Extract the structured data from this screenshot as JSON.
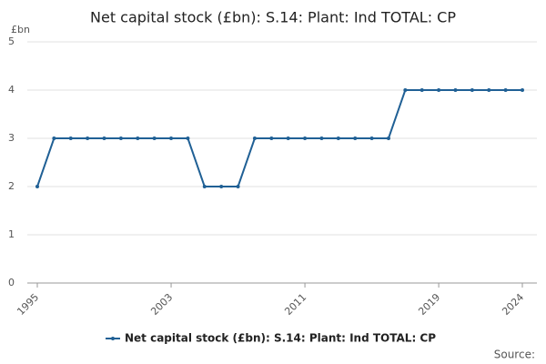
{
  "chart_data": {
    "type": "line",
    "title": "Net capital stock (£bn): S.14: Plant: Ind TOTAL: CP",
    "y_label": "£bn",
    "x": [
      1995,
      1996,
      1997,
      1998,
      1999,
      2000,
      2001,
      2002,
      2003,
      2004,
      2005,
      2006,
      2007,
      2008,
      2009,
      2010,
      2011,
      2012,
      2013,
      2014,
      2015,
      2016,
      2017,
      2018,
      2019,
      2020,
      2021,
      2022,
      2023,
      2024
    ],
    "series": [
      {
        "name": "Net capital stock (£bn): S.14: Plant: Ind TOTAL: CP",
        "color": "#206095",
        "values": [
          2,
          3,
          3,
          3,
          3,
          3,
          3,
          3,
          3,
          3,
          2,
          2,
          2,
          3,
          3,
          3,
          3,
          3,
          3,
          3,
          3,
          3,
          4,
          4,
          4,
          4,
          4,
          4,
          4,
          4
        ]
      }
    ],
    "xlim": [
      1995,
      2024
    ],
    "xticks": [
      1995,
      2003,
      2011,
      2019,
      2024
    ],
    "ylim": [
      0,
      5
    ],
    "yticks": [
      0,
      1,
      2,
      3,
      4,
      5
    ],
    "grid": true,
    "legend": "bottom",
    "source": "Source:"
  }
}
